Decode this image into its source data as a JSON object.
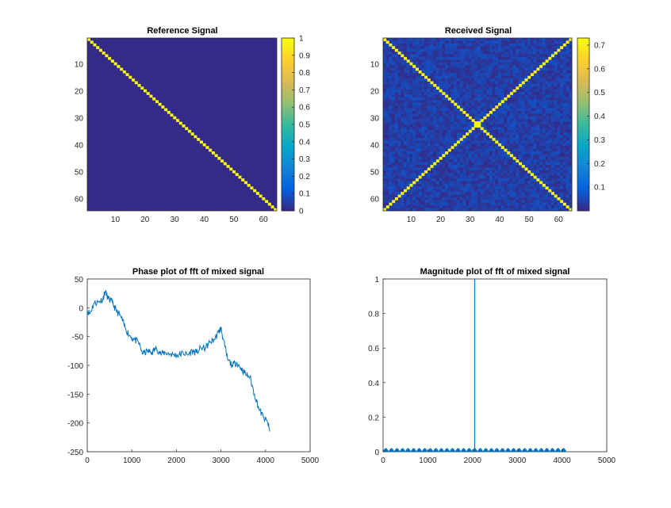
{
  "chart_data": [
    {
      "type": "heatmap",
      "title": "Reference Signal",
      "matrix_size": 64,
      "pattern": "main diagonal",
      "background_value": 0,
      "diagonal_value": 1,
      "x_ticks": [
        "10",
        "20",
        "30",
        "40",
        "50",
        "60"
      ],
      "y_ticks": [
        "10",
        "20",
        "30",
        "40",
        "50",
        "60"
      ],
      "colorbar": {
        "range": [
          0,
          1
        ],
        "ticks": [
          "0",
          "0.1",
          "0.2",
          "0.3",
          "0.4",
          "0.5",
          "0.6",
          "0.7",
          "0.8",
          "0.9",
          "1"
        ]
      }
    },
    {
      "type": "heatmap",
      "title": "Received Signal",
      "matrix_size": 64,
      "pattern": "main diagonal and anti-diagonal with noise",
      "background_value": 0.02,
      "line_value": 0.72,
      "x_ticks": [
        "10",
        "20",
        "30",
        "40",
        "50",
        "60"
      ],
      "y_ticks": [
        "10",
        "20",
        "30",
        "40",
        "50",
        "60"
      ],
      "colorbar": {
        "range": [
          0,
          0.73
        ],
        "ticks": [
          "0.1",
          "0.2",
          "0.3",
          "0.4",
          "0.5",
          "0.6",
          "0.7"
        ]
      }
    },
    {
      "type": "line",
      "title": "Phase plot of fft of mixed signal",
      "xlim": [
        0,
        5000
      ],
      "ylim": [
        -250,
        50
      ],
      "x_ticks": [
        "0",
        "1000",
        "2000",
        "3000",
        "4000",
        "5000"
      ],
      "y_ticks": [
        "50",
        "0",
        "-50",
        "-100",
        "-150",
        "-200",
        "-250"
      ],
      "series": [
        {
          "color": "#0072BD",
          "x": [
            0,
            60,
            150,
            250,
            350,
            400,
            480,
            560,
            650,
            750,
            850,
            950,
            1050,
            1150,
            1250,
            1350,
            1450,
            1550,
            1650,
            1750,
            1850,
            1950,
            2050,
            2150,
            2250,
            2350,
            2450,
            2550,
            2650,
            2750,
            2850,
            2950,
            3000,
            3050,
            3150,
            3250,
            3350,
            3450,
            3550,
            3650,
            3750,
            3850,
            3950,
            4050,
            4096
          ],
          "y": [
            -5,
            -10,
            8,
            10,
            15,
            28,
            15,
            10,
            -5,
            -15,
            -35,
            -48,
            -55,
            -60,
            -80,
            -75,
            -78,
            -70,
            -80,
            -78,
            -80,
            -82,
            -82,
            -78,
            -82,
            -75,
            -78,
            -70,
            -70,
            -60,
            -55,
            -42,
            -35,
            -55,
            -90,
            -100,
            -95,
            -105,
            -115,
            -120,
            -150,
            -175,
            -190,
            -200,
            -215
          ]
        }
      ]
    },
    {
      "type": "stem",
      "title": "Magnitude plot of fft of mixed signal",
      "xlim": [
        0,
        5000
      ],
      "ylim": [
        0,
        1
      ],
      "x_ticks": [
        "0",
        "1000",
        "2000",
        "3000",
        "4000",
        "5000"
      ],
      "y_ticks": [
        "0",
        "0.2",
        "0.4",
        "0.6",
        "0.8",
        "1"
      ],
      "peak": {
        "x": 2048,
        "y": 1
      },
      "baseline_ripple": {
        "from": 0,
        "to": 4096,
        "max": 0.02,
        "lobes": 33
      },
      "color": "#0072BD"
    }
  ]
}
